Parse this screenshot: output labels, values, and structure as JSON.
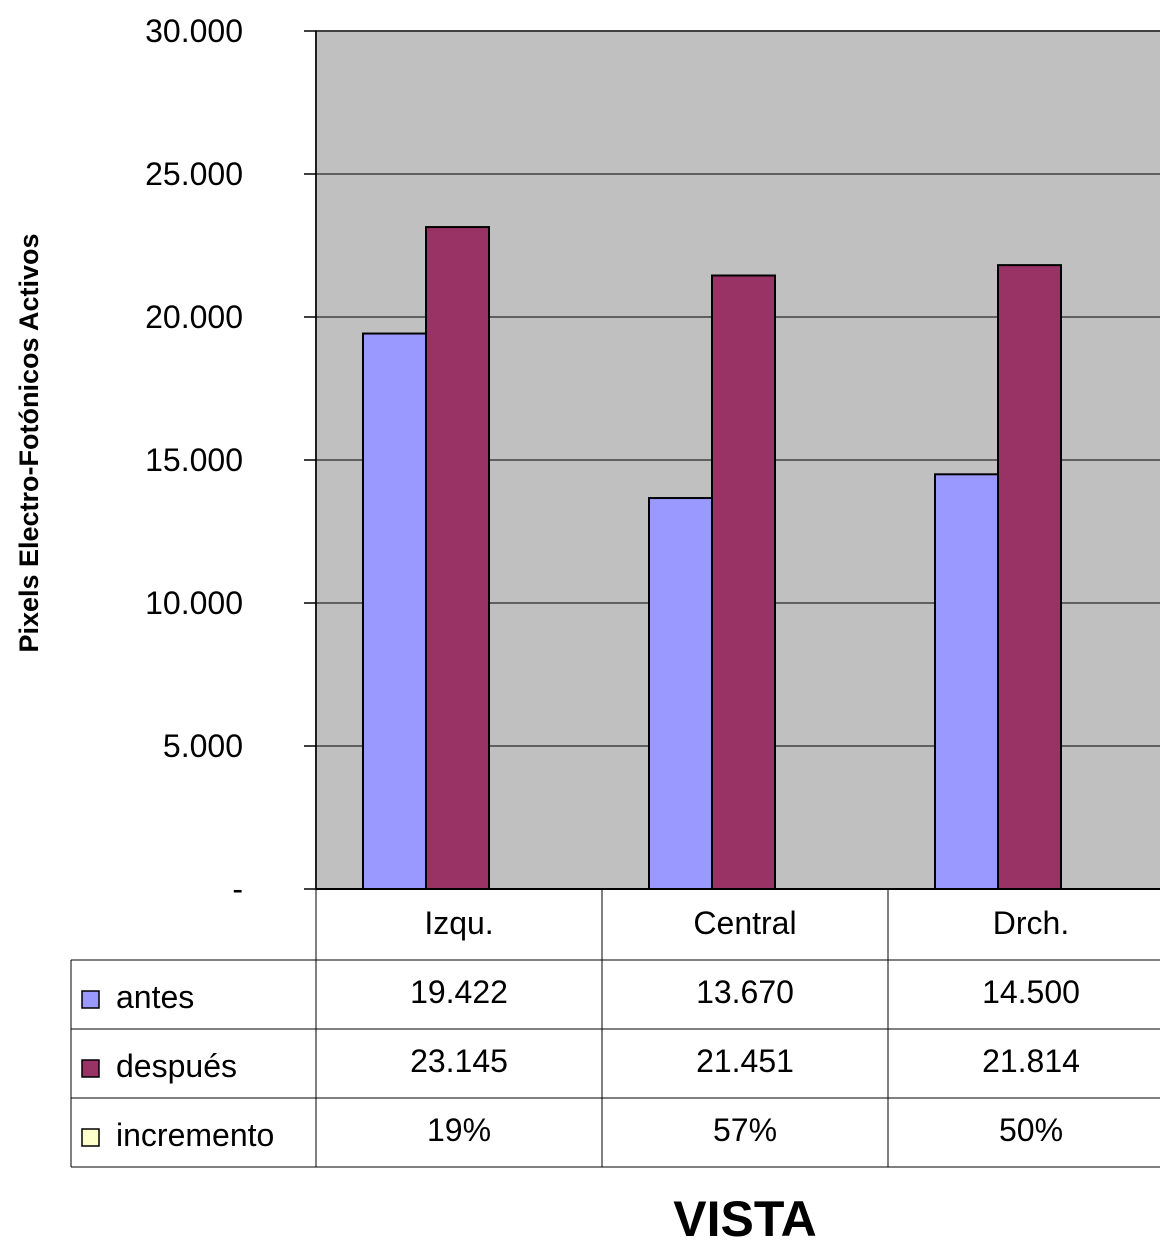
{
  "chart_data": {
    "type": "bar",
    "categories": [
      "Izqu.",
      "Central",
      "Drch."
    ],
    "series": [
      {
        "name": "antes",
        "values": [
          19422,
          13670,
          14500
        ],
        "labels": [
          "19.422",
          "13.670",
          "14.500"
        ],
        "color": "#9999FF"
      },
      {
        "name": "después",
        "values": [
          23145,
          21451,
          21814
        ],
        "labels": [
          "23.145",
          "21.451",
          "21.814"
        ],
        "color": "#993366"
      },
      {
        "name": "incremento",
        "values": [
          0.19,
          0.57,
          0.5
        ],
        "labels": [
          "19%",
          "57%",
          "50%"
        ],
        "color": "#FFFFCC"
      }
    ],
    "ylim": [
      0,
      30000
    ],
    "yticks": [
      0,
      5000,
      10000,
      15000,
      20000,
      25000,
      30000
    ],
    "ytick_labels": [
      "-",
      "5.000",
      "10.000",
      "15.000",
      "20.000",
      "25.000",
      "30.000"
    ],
    "xlabel": "VISTA",
    "ylabel": "Pixels Electro-Fotónicos Activos",
    "plot_background": "#C0C0C0",
    "grid": true,
    "legend": "data-table"
  }
}
